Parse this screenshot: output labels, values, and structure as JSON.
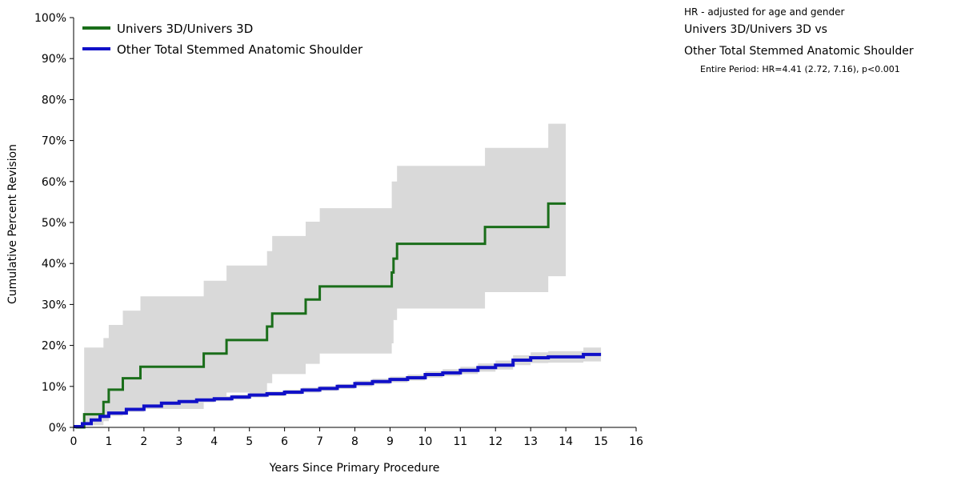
{
  "hr_note": {
    "heading": "HR - adjusted for age and gender",
    "comparison_line1": "Univers 3D/Univers 3D vs",
    "comparison_line2": "Other Total Stemmed Anatomic Shoulder",
    "period_result": "Entire Period: HR=4.41 (2.72, 7.16), p<0.001"
  },
  "chart_data": {
    "type": "line",
    "step": true,
    "title": "",
    "xlabel": "Years Since Primary Procedure",
    "ylabel": "Cumulative Percent Revision",
    "xlim": [
      0,
      16
    ],
    "ylim": [
      0,
      100
    ],
    "x_ticks": [
      "0",
      "1",
      "2",
      "3",
      "4",
      "5",
      "6",
      "7",
      "8",
      "9",
      "10",
      "11",
      "12",
      "13",
      "14",
      "15",
      "16"
    ],
    "y_ticks": [
      "0%",
      "10%",
      "20%",
      "30%",
      "40%",
      "50%",
      "60%",
      "70%",
      "80%",
      "90%",
      "100%"
    ],
    "grid": false,
    "legend_position": "top-left",
    "series": [
      {
        "name": "Univers 3D/Univers 3D",
        "color": "#1a6e1a",
        "x": [
          0.05,
          0.3,
          0.85,
          1.0,
          1.4,
          1.9,
          3.7,
          4.35,
          5.5,
          5.65,
          6.6,
          7.0,
          9.05,
          9.1,
          9.2,
          11.7,
          13.5,
          14.0
        ],
        "y": [
          0.0,
          3.2,
          6.2,
          9.2,
          12.0,
          14.8,
          18.0,
          21.3,
          24.6,
          27.8,
          31.2,
          34.4,
          37.8,
          41.2,
          44.8,
          48.9,
          54.6,
          54.6
        ],
        "lower": [
          0.0,
          0.5,
          1.5,
          2.8,
          3.8,
          4.5,
          6.5,
          8.5,
          10.8,
          13.0,
          15.5,
          18.0,
          20.5,
          26.2,
          29.0,
          33.0,
          36.9,
          36.9
        ],
        "upper": [
          0.0,
          19.5,
          21.8,
          25.0,
          28.5,
          32.0,
          35.8,
          39.5,
          43.0,
          46.7,
          50.2,
          53.5,
          60.0,
          60.0,
          63.8,
          68.2,
          74.1,
          74.1
        ]
      },
      {
        "name": "Other Total Stemmed Anatomic Shoulder",
        "color": "#1010c8",
        "x": [
          0.0,
          0.25,
          0.5,
          0.75,
          1.0,
          1.5,
          2.0,
          2.5,
          3.0,
          3.5,
          4.0,
          4.5,
          5.0,
          5.5,
          6.0,
          6.5,
          7.0,
          7.5,
          8.0,
          8.5,
          9.0,
          9.5,
          10.0,
          10.5,
          11.0,
          11.5,
          12.0,
          12.5,
          13.0,
          13.5,
          14.0,
          14.5,
          15.0
        ],
        "y": [
          0.2,
          0.9,
          1.8,
          2.7,
          3.5,
          4.4,
          5.2,
          5.9,
          6.3,
          6.7,
          7.0,
          7.4,
          7.9,
          8.2,
          8.6,
          9.1,
          9.5,
          10.0,
          10.7,
          11.2,
          11.7,
          12.1,
          12.9,
          13.3,
          13.9,
          14.6,
          15.2,
          16.4,
          17.0,
          17.2,
          17.2,
          17.8,
          17.8
        ],
        "lower": [
          0.1,
          0.6,
          1.4,
          2.2,
          3.0,
          3.8,
          4.6,
          5.3,
          5.7,
          6.1,
          6.4,
          6.8,
          7.3,
          7.6,
          8.0,
          8.5,
          8.9,
          9.4,
          10.0,
          10.5,
          11.0,
          11.4,
          12.1,
          12.5,
          13.0,
          13.6,
          14.1,
          15.2,
          15.7,
          15.8,
          15.8,
          16.1,
          16.1
        ],
        "upper": [
          0.3,
          1.2,
          2.2,
          3.2,
          4.0,
          5.0,
          5.8,
          6.5,
          6.9,
          7.3,
          7.6,
          8.0,
          8.5,
          8.8,
          9.2,
          9.7,
          10.1,
          10.6,
          11.4,
          11.9,
          12.4,
          12.9,
          13.7,
          14.2,
          14.8,
          15.6,
          16.3,
          17.6,
          18.3,
          18.6,
          18.6,
          19.5,
          19.5
        ]
      }
    ],
    "confidence_band_color": "#d9d9d9"
  }
}
